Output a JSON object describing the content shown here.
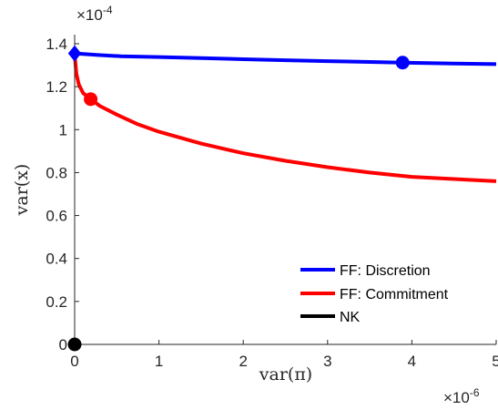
{
  "chart_data": {
    "type": "line",
    "xlabel": "var(π)",
    "ylabel": "var(x)",
    "x_multiplier": "×10⁻⁶",
    "y_multiplier": "×10⁻⁴",
    "x_multiplier_base": "×10",
    "x_multiplier_exp": "-6",
    "y_multiplier_base": "×10",
    "y_multiplier_exp": "-4",
    "xlim": [
      0,
      5
    ],
    "ylim": [
      0,
      1.4
    ],
    "x_ticks": [
      0,
      1,
      2,
      3,
      4,
      5
    ],
    "x_tick_labels": [
      "0",
      "1",
      "2",
      "3",
      "4",
      "5"
    ],
    "y_ticks": [
      0,
      0.2,
      0.4,
      0.6,
      0.8,
      1.0,
      1.2,
      1.4
    ],
    "y_tick_labels": [
      "0",
      "0.2",
      "0.4",
      "0.6",
      "0.8",
      "1",
      "1.2",
      "1.4"
    ],
    "legend_position": "bottom-right",
    "series": [
      {
        "name": "FF: Discretion",
        "color": "#0000ff",
        "x": [
          0,
          0.1,
          0.3,
          0.55,
          1.0,
          1.5,
          2.0,
          2.5,
          3.0,
          3.5,
          3.89,
          4.5,
          5.0
        ],
        "y": [
          1.355,
          1.352,
          1.347,
          1.342,
          1.338,
          1.333,
          1.328,
          1.323,
          1.319,
          1.315,
          1.312,
          1.308,
          1.305
        ],
        "markers": [
          {
            "x": 0,
            "y": 1.355,
            "shape": "diamond"
          },
          {
            "x": 3.89,
            "y": 1.312,
            "shape": "circle"
          }
        ]
      },
      {
        "name": "FF: Commitment",
        "color": "#ff0000",
        "x": [
          0,
          0.02,
          0.05,
          0.1,
          0.19,
          0.3,
          0.5,
          0.75,
          1.0,
          1.5,
          2.0,
          2.5,
          3.0,
          3.5,
          4.0,
          4.5,
          5.0
        ],
        "y": [
          1.35,
          1.26,
          1.21,
          1.17,
          1.142,
          1.11,
          1.07,
          1.025,
          0.99,
          0.935,
          0.89,
          0.855,
          0.825,
          0.8,
          0.78,
          0.77,
          0.76
        ],
        "markers": [
          {
            "x": 0.19,
            "y": 1.142,
            "shape": "circle"
          }
        ]
      },
      {
        "name": "NK",
        "color": "#000000",
        "x": [
          0
        ],
        "y": [
          0
        ],
        "markers": [
          {
            "x": 0,
            "y": 0,
            "shape": "circle"
          }
        ]
      }
    ]
  }
}
